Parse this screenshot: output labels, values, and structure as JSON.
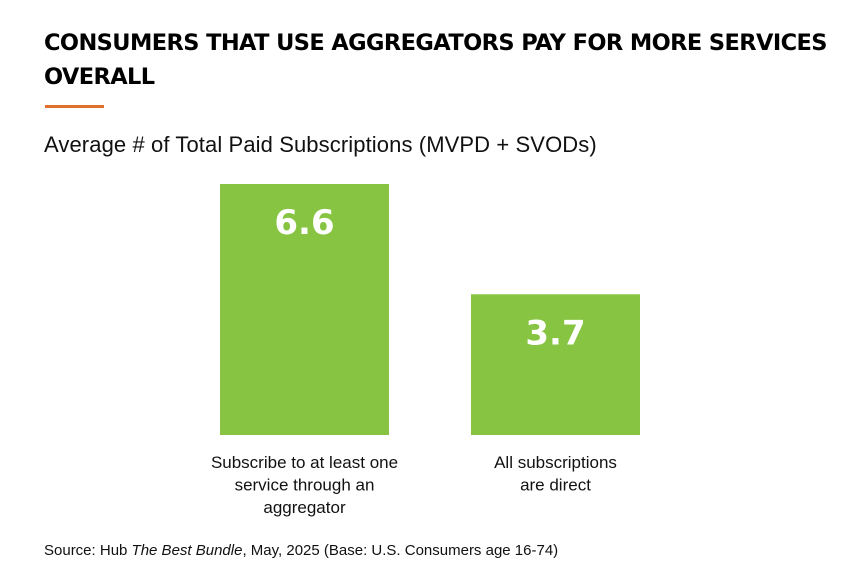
{
  "page": {
    "title": "CONSUMERS THAT USE AGGREGATORS PAY FOR MORE SERVICES OVERALL",
    "subtitle": "Average # of Total Paid Subscriptions (MVPD + SVODs)",
    "source": {
      "prefix": "Source: Hub ",
      "publication": "The Best Bundle",
      "suffix": ", May, 2025 (Base: U.S. Consumers age 16-74)"
    }
  },
  "colors": {
    "accent": "#E0702A",
    "bar": "#86C441",
    "bar_label": "#FFFFFF",
    "category_text": "#111111"
  },
  "chart_data": {
    "type": "bar",
    "title": "Average # of Total Paid Subscriptions (MVPD + SVODs)",
    "xlabel": "",
    "ylabel": "",
    "ylim": [
      0,
      7.1
    ],
    "grid": false,
    "legend": "none",
    "categories": [
      [
        "Subscribe to at least one",
        "service through an",
        "aggregator"
      ],
      [
        "All subscriptions",
        "are direct"
      ]
    ],
    "values": [
      6.6,
      3.7
    ],
    "data_labels": [
      "6.6",
      "3.7"
    ]
  }
}
